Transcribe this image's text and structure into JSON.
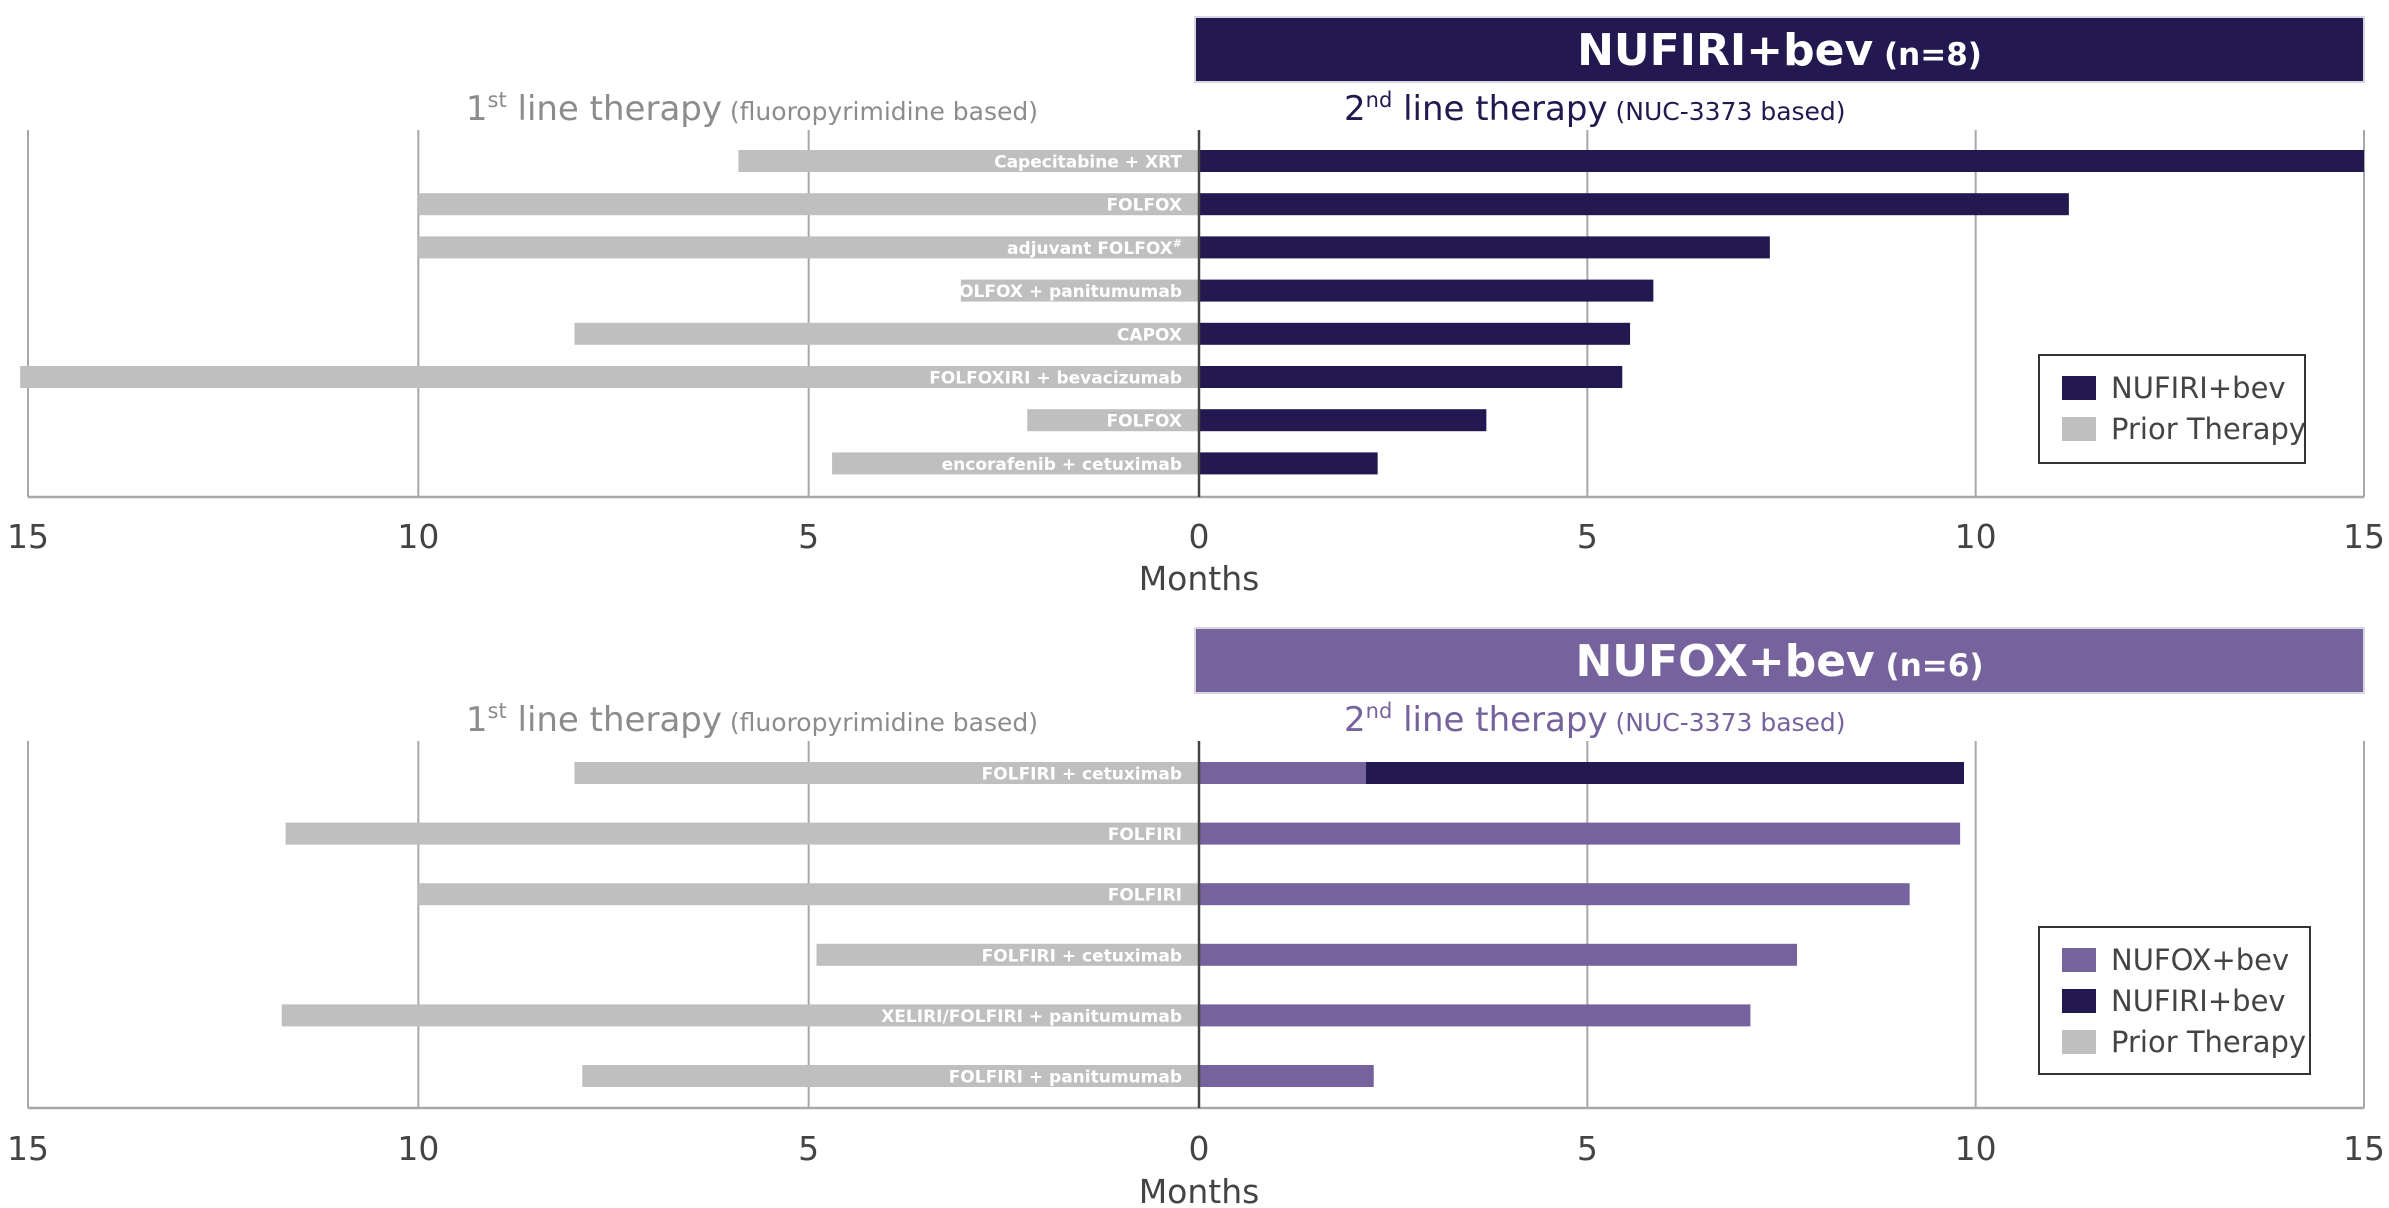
{
  "colors": {
    "nufiri": "#23184f",
    "nufox": "#76629c",
    "prior": "#c0bfc0",
    "grid": "#a8a8a8",
    "first_line_text": "#8c8c8c",
    "second_line_text_top": "#23184f",
    "second_line_text_bottom": "#76629c"
  },
  "chart_data": [
    {
      "type": "bar",
      "orientation": "horizontal-diverging",
      "title": "NUFIRI+bev",
      "title_n": "(n=8)",
      "left_header": {
        "main": "1",
        "sup": "st",
        "rest": " line therapy",
        "note": " (fluoropyrimidine based)"
      },
      "right_header": {
        "main": "2",
        "sup": "nd",
        "rest": " line therapy",
        "note": " (NUC-3373 based)"
      },
      "xlabel": "Months",
      "xlim": [
        -15,
        15
      ],
      "ticks": [
        15,
        10,
        5,
        0,
        5,
        10,
        15
      ],
      "legend": [
        {
          "label": "NUFIRI+bev",
          "color_key": "nufiri"
        },
        {
          "label": "Prior Therapy",
          "color_key": "prior"
        }
      ],
      "legend_position": "right",
      "rows": [
        {
          "prior_label": "Capecitabine + XRT",
          "prior_months": 5.9,
          "nuc": [
            {
              "months": 15.0,
              "color_key": "nufiri"
            }
          ]
        },
        {
          "prior_label": "FOLFOX",
          "prior_months": 10.0,
          "nuc": [
            {
              "months": 11.2,
              "color_key": "nufiri"
            }
          ]
        },
        {
          "prior_label": "adjuvant FOLFOX",
          "prior_sup": "#",
          "prior_months": 10.0,
          "nuc": [
            {
              "months": 7.35,
              "color_key": "nufiri"
            }
          ]
        },
        {
          "prior_label": "FOLFOX + panitumumab",
          "prior_months": 3.05,
          "nuc": [
            {
              "months": 5.85,
              "color_key": "nufiri"
            }
          ]
        },
        {
          "prior_label": "CAPOX",
          "prior_months": 8.0,
          "nuc": [
            {
              "months": 5.55,
              "color_key": "nufiri"
            }
          ]
        },
        {
          "prior_label": "FOLFOXIRI + bevacizumab",
          "prior_months": 15.1,
          "nuc": [
            {
              "months": 5.45,
              "color_key": "nufiri"
            }
          ]
        },
        {
          "prior_label": "FOLFOX",
          "prior_months": 2.2,
          "nuc": [
            {
              "months": 3.7,
              "color_key": "nufiri"
            }
          ]
        },
        {
          "prior_label": "encorafenib + cetuximab",
          "prior_months": 4.7,
          "nuc": [
            {
              "months": 2.3,
              "color_key": "nufiri"
            }
          ]
        }
      ]
    },
    {
      "type": "bar",
      "orientation": "horizontal-diverging",
      "title": "NUFOX+bev",
      "title_n": "(n=6)",
      "left_header": {
        "main": "1",
        "sup": "st",
        "rest": " line therapy",
        "note": " (fluoropyrimidine based)"
      },
      "right_header": {
        "main": "2",
        "sup": "nd",
        "rest": " line therapy",
        "note": " (NUC-3373 based)"
      },
      "xlabel": "Months",
      "xlim": [
        -15,
        15
      ],
      "ticks": [
        15,
        10,
        5,
        0,
        5,
        10,
        15
      ],
      "legend": [
        {
          "label": "NUFOX+bev",
          "color_key": "nufox"
        },
        {
          "label": "NUFIRI+bev",
          "color_key": "nufiri"
        },
        {
          "label": "Prior Therapy",
          "color_key": "prior"
        }
      ],
      "legend_position": "right",
      "rows": [
        {
          "prior_label": "FOLFIRI + cetuximab",
          "prior_months": 8.0,
          "nuc": [
            {
              "months": 2.15,
              "color_key": "nufox"
            },
            {
              "months": 9.85,
              "color_key": "nufiri"
            }
          ]
        },
        {
          "prior_label": "FOLFIRI",
          "prior_months": 11.7,
          "nuc": [
            {
              "months": 9.8,
              "color_key": "nufox"
            }
          ]
        },
        {
          "prior_label": "FOLFIRI",
          "prior_months": 10.0,
          "nuc": [
            {
              "months": 9.15,
              "color_key": "nufox"
            }
          ]
        },
        {
          "prior_label": "FOLFIRI + cetuximab",
          "prior_months": 4.9,
          "nuc": [
            {
              "months": 7.7,
              "color_key": "nufox"
            }
          ]
        },
        {
          "prior_label": "XELIRI/FOLFIRI + panitumumab",
          "prior_months": 11.75,
          "nuc": [
            {
              "months": 7.1,
              "color_key": "nufox"
            }
          ]
        },
        {
          "prior_label": "FOLFIRI + panitumumab",
          "prior_months": 7.9,
          "nuc": [
            {
              "months": 2.25,
              "color_key": "nufox"
            }
          ]
        }
      ]
    }
  ]
}
